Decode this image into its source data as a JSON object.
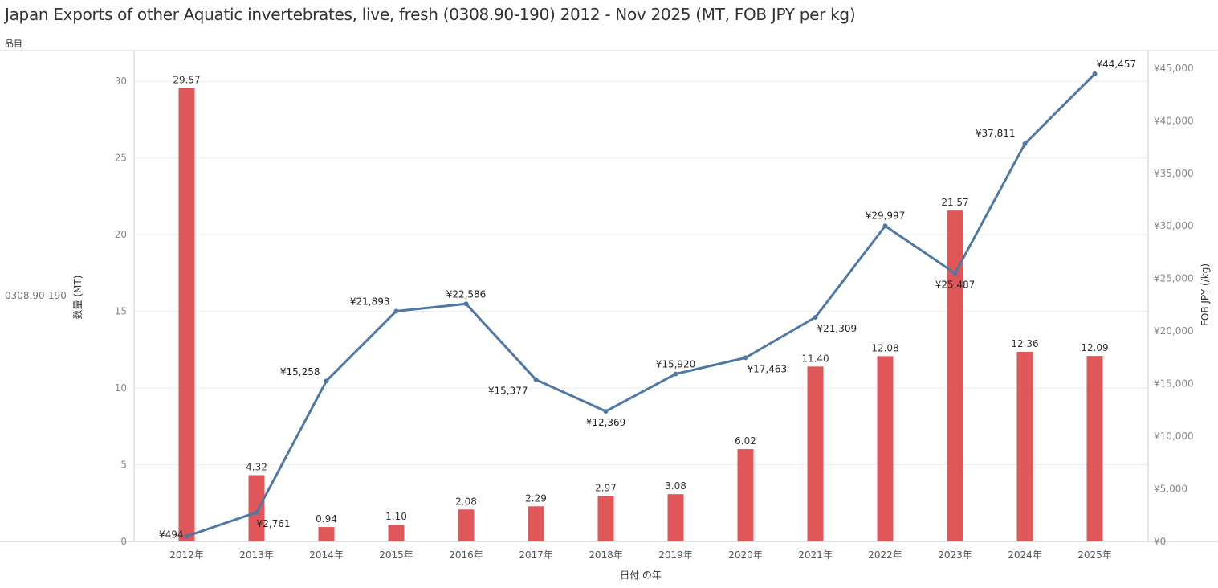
{
  "title": "Japan Exports of other Aquatic invertebrates, live, fresh (0308.90-190) 2012 - Nov 2025 (MT, FOB JPY per kg)",
  "row_header": "品目",
  "row_label": "0308.90-190",
  "chart_data": {
    "type": "bar",
    "categories": [
      "2012年",
      "2013年",
      "2014年",
      "2015年",
      "2016年",
      "2017年",
      "2018年",
      "2019年",
      "2020年",
      "2021年",
      "2022年",
      "2023年",
      "2024年",
      "2025年"
    ],
    "series": [
      {
        "type": "bar",
        "axis": "left",
        "color": "#e05759",
        "values": [
          29.57,
          4.32,
          0.94,
          1.1,
          2.08,
          2.29,
          2.97,
          3.08,
          6.02,
          11.4,
          12.08,
          21.57,
          12.36,
          12.09
        ],
        "labels": [
          "29.57",
          "4.32",
          "0.94",
          "1.10",
          "2.08",
          "2.29",
          "2.97",
          "3.08",
          "6.02",
          "11.40",
          "12.08",
          "21.57",
          "12.36",
          "12.09"
        ]
      },
      {
        "type": "line",
        "axis": "right",
        "color": "#4e79a7",
        "values": [
          494,
          2761,
          15258,
          21893,
          22586,
          15377,
          12369,
          15920,
          17463,
          21309,
          29997,
          25487,
          37811,
          44457
        ],
        "labels": [
          "¥494",
          "¥2,761",
          "¥15,258",
          "¥21,893",
          "¥22,586",
          "¥15,377",
          "¥12,369",
          "¥15,920",
          "¥17,463",
          "¥21,309",
          "¥29,997",
          "¥25,487",
          "¥37,811",
          "¥44,457"
        ]
      }
    ],
    "xlabel": "日付 の年",
    "ylabel_left": "数量 (MT)",
    "ylabel_right": "FOB JPY (/kg)",
    "ylim_left": [
      0,
      32
    ],
    "yticks_left": [
      0,
      5,
      10,
      15,
      20,
      25,
      30
    ],
    "ylim_right": [
      0,
      46667
    ],
    "yticks_right": [
      0,
      5000,
      10000,
      15000,
      20000,
      25000,
      30000,
      35000,
      40000,
      45000
    ],
    "yticklabels_right": [
      "¥0",
      "¥5,000",
      "¥10,000",
      "¥15,000",
      "¥20,000",
      "¥25,000",
      "¥30,000",
      "¥35,000",
      "¥40,000",
      "¥45,000"
    ],
    "grid": true
  }
}
